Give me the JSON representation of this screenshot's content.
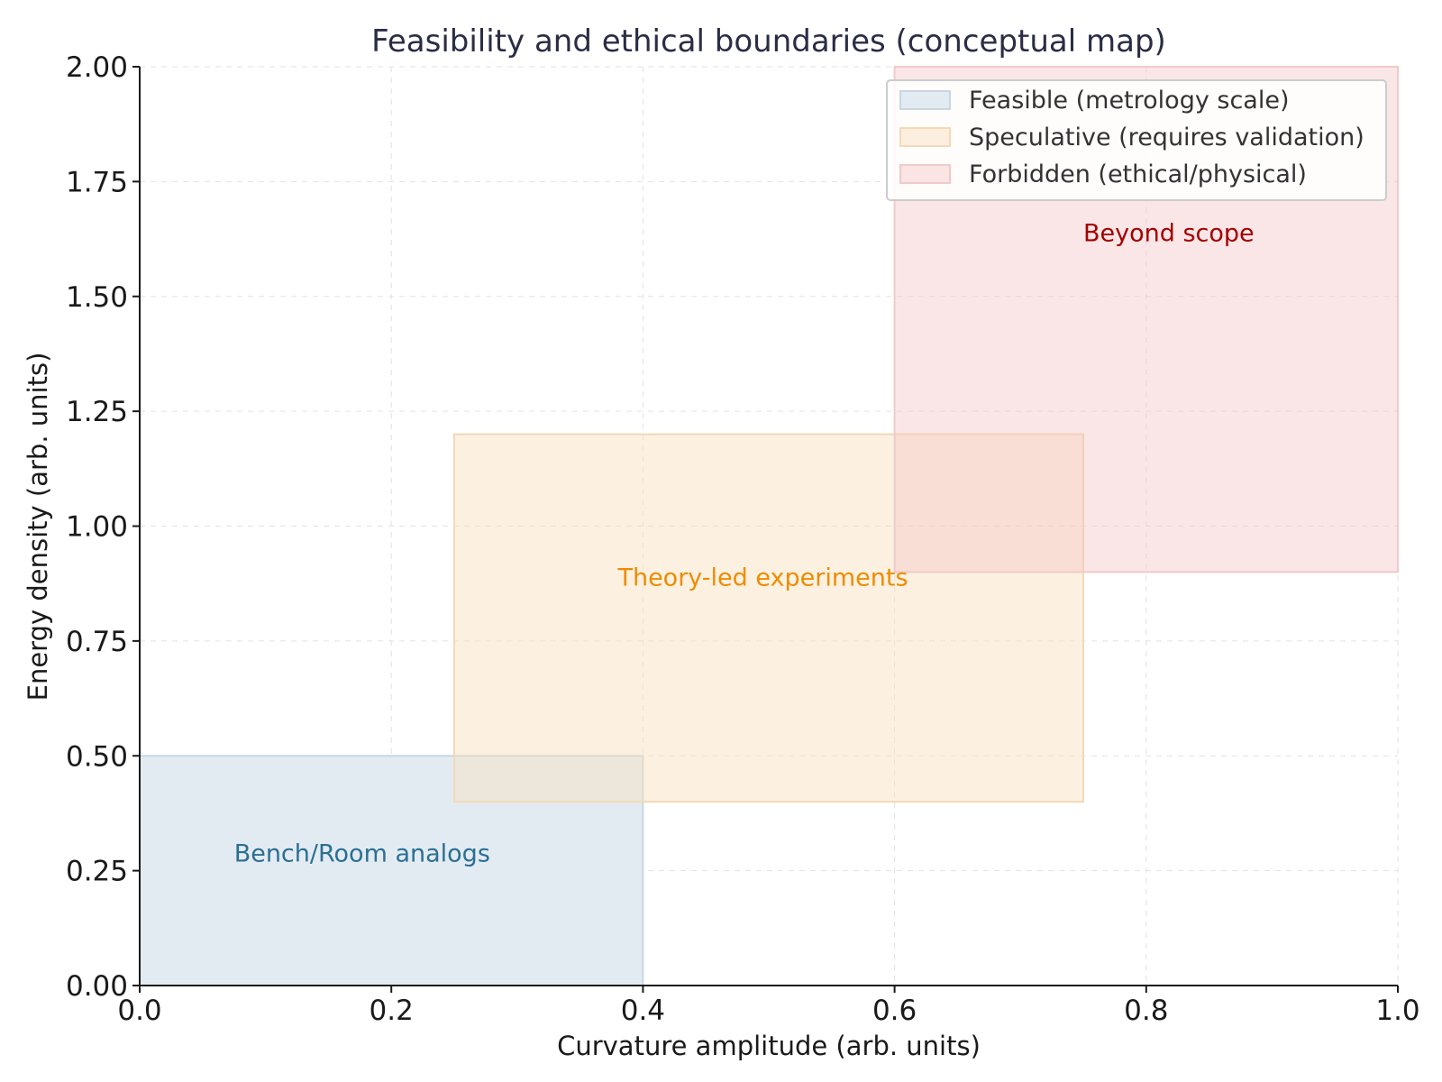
{
  "chart_data": {
    "type": "area",
    "title": "Feasibility and ethical boundaries (conceptual map)",
    "xlabel": "Curvature amplitude (arb. units)",
    "ylabel": "Energy density (arb. units)",
    "xlim": [
      0,
      1
    ],
    "ylim": [
      0,
      2
    ],
    "xticks": [
      "0.0",
      "0.2",
      "0.4",
      "0.6",
      "0.8",
      "1.0"
    ],
    "yticks": [
      "0.00",
      "0.25",
      "0.50",
      "0.75",
      "1.00",
      "1.25",
      "1.50",
      "1.75",
      "2.00"
    ],
    "grid": true,
    "legend_position": "top-right",
    "regions": [
      {
        "name": "Feasible (metrology scale)",
        "x": [
          0,
          0.4
        ],
        "y": [
          0,
          0.5
        ],
        "fill": "#e3ebf2",
        "edge": "#c9d6e2",
        "label": "Bench/Room analogs",
        "label_x": 0.075,
        "label_y": 0.27,
        "label_color": "#2b6f93"
      },
      {
        "name": "Speculative (requires validation)",
        "x": [
          0.25,
          0.75
        ],
        "y": [
          0.4,
          1.2
        ],
        "fill": "#f9dfbd",
        "fill_opacity": 0.45,
        "edge": "#f3d9b6",
        "label": "Theory-led experiments",
        "label_x": 0.38,
        "label_y": 0.87,
        "label_color": "#ee8c00"
      },
      {
        "name": "Forbidden (ethical/physical)",
        "x": [
          0.6,
          1.0
        ],
        "y": [
          0.9,
          2.0
        ],
        "fill": "#f4c4c4",
        "fill_opacity": 0.42,
        "edge": "#f0caca",
        "label": "Beyond scope",
        "label_x": 0.75,
        "label_y": 1.62,
        "label_color": "#a40000"
      }
    ]
  }
}
